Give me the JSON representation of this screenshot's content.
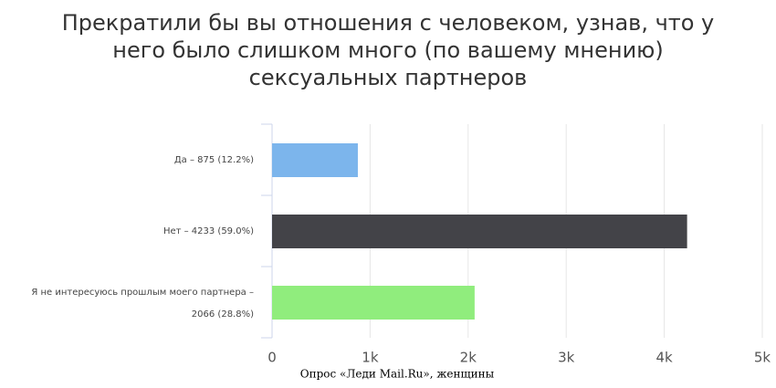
{
  "chart_data": {
    "type": "bar",
    "orientation": "horizontal",
    "title": "Прекратили бы вы отношения с человеком, узнав, что у него было слишком много (по вашему мнению) сексуальных партнеров",
    "categories": [
      "Да – 875 (12.2%)",
      "Нет – 4233 (59.0%)",
      "Я не интересуюсь прошлым моего партнера – 2066 (28.8%)"
    ],
    "values": [
      875,
      4233,
      2066
    ],
    "colors": [
      "#7cb5ec",
      "#434348",
      "#90ed7d"
    ],
    "xlim": [
      0,
      5000
    ],
    "xticks": [
      0,
      {
        "value": 1000,
        "label": "1k"
      },
      {
        "value": 2000,
        "label": "2k"
      },
      {
        "value": 3000,
        "label": "3k"
      },
      {
        "value": 4000,
        "label": "4k"
      },
      {
        "value": 5000,
        "label": "5k"
      }
    ],
    "grid": true,
    "source": "Опрос «Леди Mail.Ru», женщины"
  }
}
